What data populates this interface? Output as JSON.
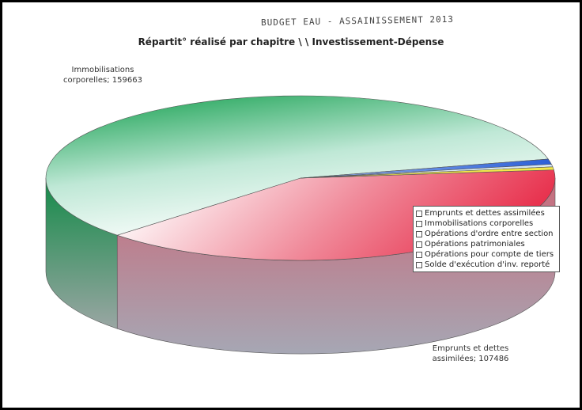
{
  "header_note": "BUDGET EAU - ASSAINISSEMENT 2013",
  "chart_data": {
    "type": "pie",
    "title": "Répartit° réalisé par chapitre \\ \\ Investissement-Dépense",
    "series": [
      {
        "slices": [
          {
            "label": "Emprunts et dettes assimilées",
            "value": 107486,
            "color": "#e8334f",
            "data_label": "Emprunts et dettes assimilées; 107486"
          },
          {
            "label": "Immobilisations corporelles",
            "value": 159663,
            "color": "#0f9d4a",
            "data_label": "Immobilisations corporelles; 159663"
          },
          {
            "label": "Opérations d'ordre entre section",
            "value": 2800,
            "color": "#2c5fd6"
          },
          {
            "label": "Opérations patrimoniales",
            "value": 1400,
            "color": "#d8e8f4"
          },
          {
            "label": "Opérations pour compte de tiers",
            "value": 1600,
            "color": "#f3e84a"
          },
          {
            "label": "Solde d'exécution d'inv. reporté",
            "value": 0,
            "color": "#ffffff"
          }
        ]
      }
    ],
    "legend": {
      "position": "right",
      "entries": [
        "Emprunts et dettes assimilées",
        "Immobilisations corporelles",
        "Opérations d'ordre entre section",
        "Opérations patrimoniales",
        "Opérations pour compte de tiers",
        "Solde d'exécution d'inv. reporté"
      ]
    },
    "style": "3d-tilted"
  }
}
